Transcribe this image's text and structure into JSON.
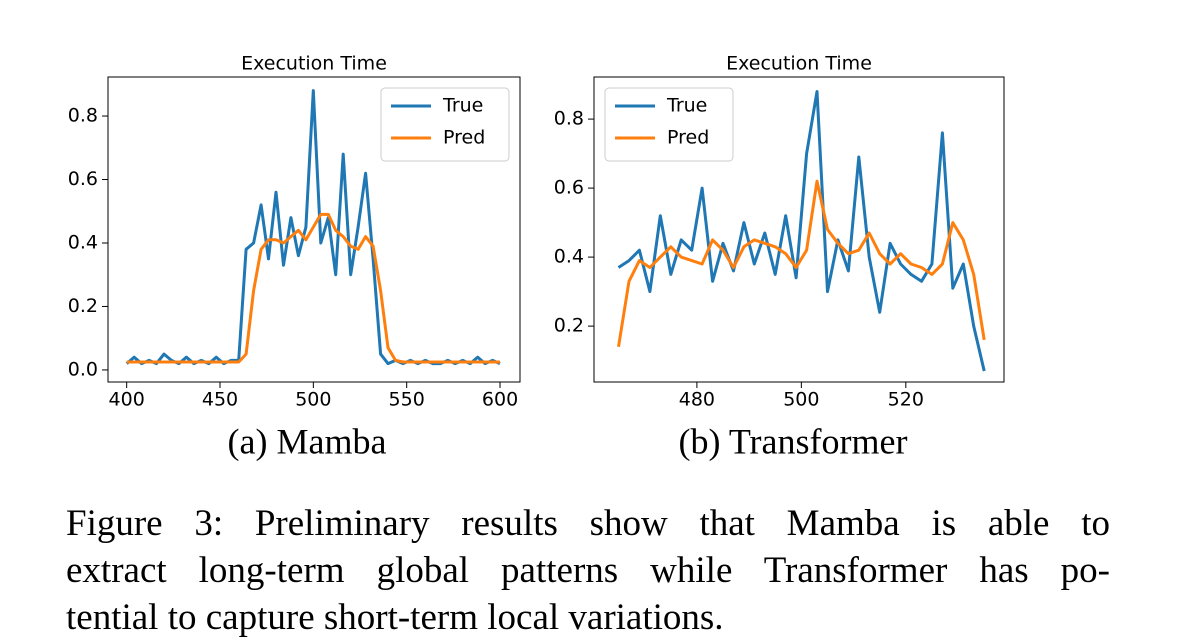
{
  "chart_data": [
    {
      "type": "line",
      "title": "Execution Time",
      "x": [
        400,
        404,
        408,
        412,
        416,
        420,
        424,
        428,
        432,
        436,
        440,
        444,
        448,
        452,
        456,
        460,
        464,
        468,
        472,
        476,
        480,
        484,
        488,
        492,
        496,
        500,
        504,
        508,
        512,
        516,
        520,
        524,
        528,
        532,
        536,
        540,
        544,
        548,
        552,
        556,
        560,
        564,
        568,
        572,
        576,
        580,
        584,
        588,
        592,
        596,
        600
      ],
      "series": [
        {
          "name": "True",
          "color": "#1f77b4",
          "values": [
            0.02,
            0.04,
            0.02,
            0.03,
            0.02,
            0.05,
            0.03,
            0.02,
            0.04,
            0.02,
            0.03,
            0.02,
            0.04,
            0.02,
            0.03,
            0.03,
            0.38,
            0.4,
            0.52,
            0.35,
            0.56,
            0.33,
            0.48,
            0.36,
            0.45,
            0.88,
            0.4,
            0.48,
            0.3,
            0.68,
            0.3,
            0.45,
            0.62,
            0.35,
            0.05,
            0.02,
            0.03,
            0.02,
            0.03,
            0.02,
            0.03,
            0.02,
            0.02,
            0.03,
            0.02,
            0.03,
            0.02,
            0.04,
            0.02,
            0.03,
            0.02
          ]
        },
        {
          "name": "Pred",
          "color": "#ff7f0e",
          "values": [
            0.025,
            0.025,
            0.025,
            0.025,
            0.025,
            0.025,
            0.025,
            0.025,
            0.025,
            0.025,
            0.025,
            0.025,
            0.025,
            0.025,
            0.025,
            0.025,
            0.05,
            0.25,
            0.38,
            0.41,
            0.41,
            0.4,
            0.42,
            0.44,
            0.41,
            0.45,
            0.49,
            0.49,
            0.44,
            0.42,
            0.39,
            0.38,
            0.42,
            0.39,
            0.25,
            0.07,
            0.03,
            0.025,
            0.025,
            0.025,
            0.025,
            0.025,
            0.025,
            0.025,
            0.025,
            0.025,
            0.025,
            0.025,
            0.025,
            0.025,
            0.025
          ]
        }
      ],
      "xlim": [
        390,
        610.7
      ],
      "xticks": [
        400,
        450,
        500,
        550,
        600
      ],
      "ylim": [
        -0.038,
        0.923
      ],
      "yticks": [
        {
          "value": 0,
          "label": "0.0"
        },
        0.2,
        0.4,
        0.6,
        0.8
      ],
      "legend": "upper right"
    },
    {
      "type": "line",
      "title": "Execution Time",
      "x": [
        465,
        467,
        469,
        471,
        473,
        475,
        477,
        479,
        481,
        483,
        485,
        487,
        489,
        491,
        493,
        495,
        497,
        499,
        501,
        503,
        505,
        507,
        509,
        511,
        513,
        515,
        517,
        519,
        521,
        523,
        525,
        527,
        529,
        531,
        533,
        535
      ],
      "series": [
        {
          "name": "True",
          "color": "#1f77b4",
          "values": [
            0.37,
            0.39,
            0.42,
            0.3,
            0.52,
            0.35,
            0.45,
            0.42,
            0.6,
            0.33,
            0.44,
            0.36,
            0.5,
            0.38,
            0.47,
            0.35,
            0.52,
            0.34,
            0.7,
            0.88,
            0.3,
            0.45,
            0.36,
            0.69,
            0.4,
            0.24,
            0.44,
            0.38,
            0.35,
            0.33,
            0.38,
            0.76,
            0.31,
            0.38,
            0.2,
            0.07
          ]
        },
        {
          "name": "Pred",
          "color": "#ff7f0e",
          "values": [
            0.14,
            0.33,
            0.39,
            0.37,
            0.4,
            0.43,
            0.4,
            0.39,
            0.38,
            0.45,
            0.42,
            0.37,
            0.43,
            0.45,
            0.44,
            0.43,
            0.41,
            0.37,
            0.42,
            0.62,
            0.48,
            0.44,
            0.41,
            0.42,
            0.47,
            0.41,
            0.38,
            0.41,
            0.38,
            0.37,
            0.35,
            0.38,
            0.5,
            0.45,
            0.35,
            0.16
          ]
        }
      ],
      "xlim": [
        460.3,
        538.8
      ],
      "xticks": [
        480,
        500,
        520
      ],
      "ylim": [
        0.038,
        0.922
      ],
      "yticks": [
        0.2,
        0.4,
        0.6,
        0.8
      ],
      "legend": "upper left"
    }
  ],
  "subcaptions": [
    "(a) Mamba",
    "(b) Transformer"
  ],
  "caption_lines": [
    "Figure 3: Preliminary results show that Mamba is able to",
    "extract long-term global patterns while Transformer has po-",
    "tential to capture short-term local variations."
  ]
}
